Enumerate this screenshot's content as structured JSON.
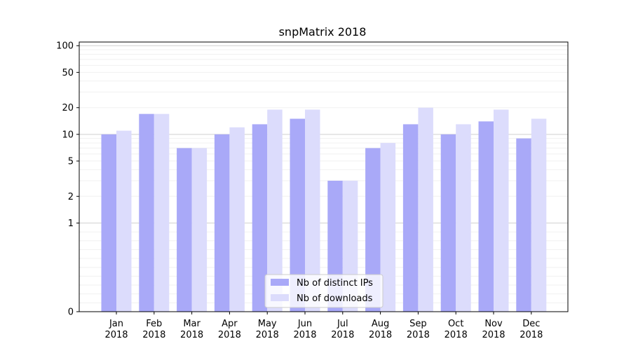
{
  "chart_data": {
    "type": "bar",
    "title": "snpMatrix 2018",
    "yscale": "symlog",
    "ylim": [
      0,
      110
    ],
    "categories": [
      "Jan\n2018",
      "Feb\n2018",
      "Mar\n2018",
      "Apr\n2018",
      "May\n2018",
      "Jun\n2018",
      "Jul\n2018",
      "Aug\n2018",
      "Sep\n2018",
      "Oct\n2018",
      "Nov\n2018",
      "Dec\n2018"
    ],
    "yticks": [
      {
        "value": 0,
        "label": "0"
      },
      {
        "value": 1,
        "label": "1"
      },
      {
        "value": 2,
        "label": "2"
      },
      {
        "value": 5,
        "label": "5"
      },
      {
        "value": 10,
        "label": "10"
      },
      {
        "value": 20,
        "label": "20"
      },
      {
        "value": 50,
        "label": "50"
      },
      {
        "value": 100,
        "label": "100"
      }
    ],
    "series": [
      {
        "name": "Nb of distinct IPs",
        "color": "#a9a9f8",
        "values": [
          10,
          17,
          7,
          10,
          13,
          15,
          3,
          7,
          13,
          10,
          14,
          9
        ]
      },
      {
        "name": "Nb of downloads",
        "color": "#dcdcfc",
        "values": [
          11,
          17,
          7,
          12,
          19,
          19,
          3,
          8,
          20,
          13,
          19,
          15
        ]
      }
    ],
    "grid": true,
    "legend": "bottom-center"
  }
}
